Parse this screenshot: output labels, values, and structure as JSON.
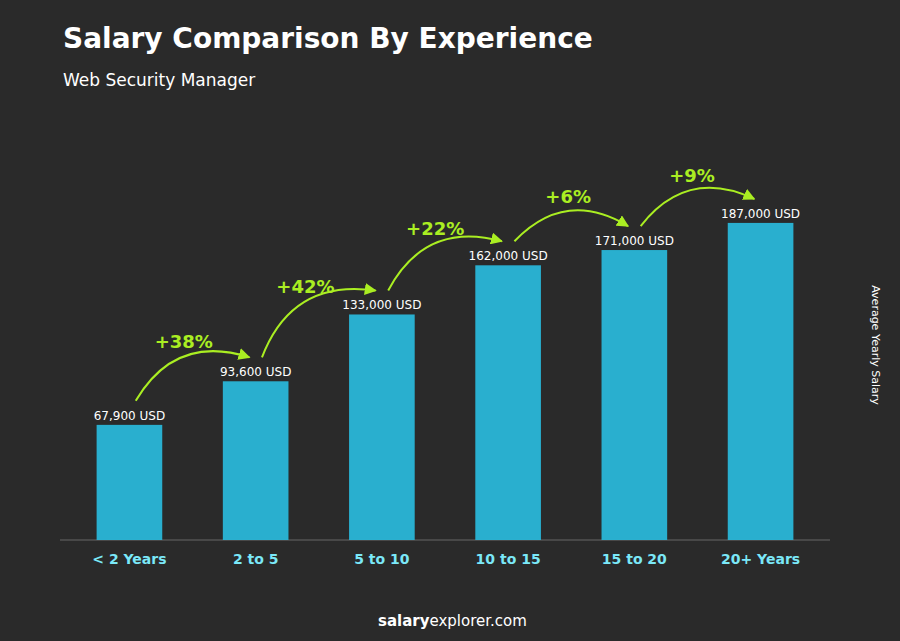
{
  "chart_data": {
    "type": "bar",
    "title": "Salary Comparison By Experience",
    "subtitle": "Web Security Manager",
    "y_label": "Average Yearly Salary",
    "categories": [
      "< 2 Years",
      "2 to 5",
      "5 to 10",
      "10 to 15",
      "15 to 20",
      "20+ Years"
    ],
    "values": [
      67900,
      93600,
      133000,
      162000,
      171000,
      187000
    ],
    "value_labels": [
      "67,900 USD",
      "93,600 USD",
      "133,000 USD",
      "162,000 USD",
      "171,000 USD",
      "187,000 USD"
    ],
    "data_labels": true,
    "annotations": [
      "+38%",
      "+42%",
      "+22%",
      "+6%",
      "+9%"
    ],
    "footer": [
      "salary",
      "explorer.com"
    ],
    "color": "#29b6d8",
    "ylim": [
      0,
      230000
    ],
    "grid": false,
    "tick_labels": "x"
  }
}
